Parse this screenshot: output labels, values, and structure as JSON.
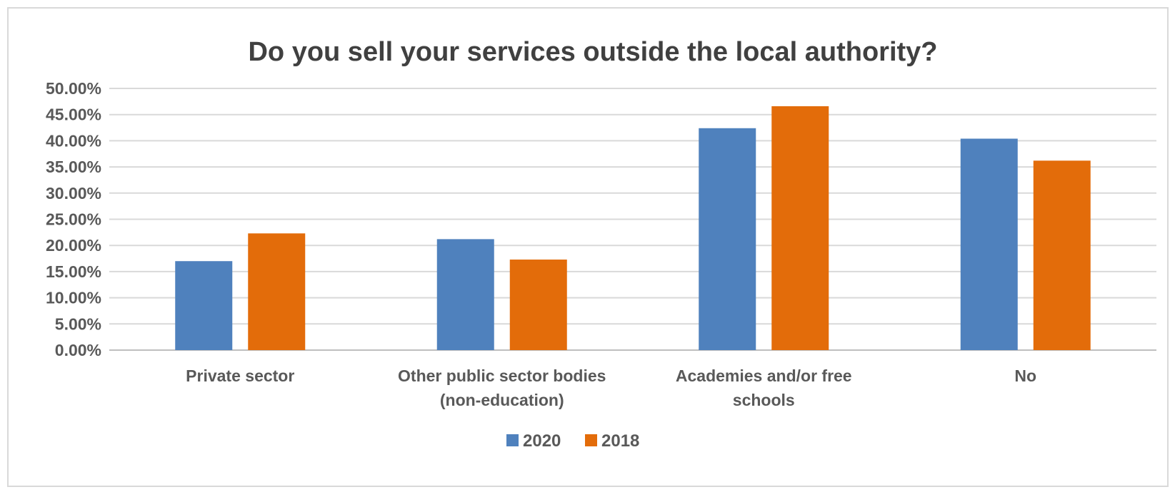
{
  "chart_data": {
    "type": "bar",
    "title": "Do you sell your services outside the local authority?",
    "categories": [
      [
        "Private sector"
      ],
      [
        "Other public sector bodies",
        "(non-education)"
      ],
      [
        "Academies and/or free",
        "schools"
      ],
      [
        "No"
      ]
    ],
    "series": [
      {
        "name": "2020",
        "color": "#4f81bd",
        "values": [
          17.0,
          21.2,
          42.4,
          40.4
        ]
      },
      {
        "name": "2018",
        "color": "#e36c0a",
        "values": [
          22.3,
          17.3,
          46.6,
          36.2
        ]
      }
    ],
    "y_ticks": [
      "0.00%",
      "5.00%",
      "10.00%",
      "15.00%",
      "20.00%",
      "25.00%",
      "30.00%",
      "35.00%",
      "40.00%",
      "45.00%",
      "50.00%"
    ],
    "ylim": [
      0,
      50
    ],
    "grid": true,
    "legend_position": "bottom",
    "colors": {
      "text": "#595959",
      "title": "#404040",
      "grid": "#d9d9d9",
      "axis": "#bfbfbf"
    }
  }
}
